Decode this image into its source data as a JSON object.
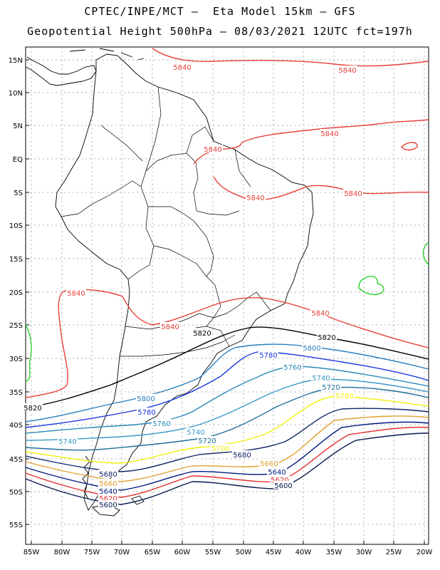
{
  "title_line1": "CPTEC/INPE/MCT –  Eta Model 15km – GFS",
  "title_line2": "Geopotential Height 500hPa – 08/03/2021 12UTC fct=197h",
  "lat_ticks": [
    "15N",
    "10N",
    "5N",
    "EQ",
    "5S",
    "10S",
    "15S",
    "20S",
    "25S",
    "30S",
    "35S",
    "40S",
    "45S",
    "50S",
    "55S"
  ],
  "lon_ticks": [
    "85W",
    "80W",
    "75W",
    "70W",
    "65W",
    "60W",
    "55W",
    "50W",
    "45W",
    "40W",
    "35W",
    "30W",
    "25W",
    "20W"
  ],
  "contour_levels": [
    "5840",
    "5820",
    "5800",
    "5780",
    "5760",
    "5740",
    "5720",
    "5700",
    "5680",
    "5660",
    "5640",
    "5620",
    "5600"
  ],
  "colors": {
    "5840": "#e8403a",
    "5820": "#000000",
    "5800": "#2b7fbf",
    "5780": "#1a37e0",
    "5760": "#2b88b8",
    "5740": "#3a9ac8",
    "5720": "#1f6f9a",
    "5700": "#f2f20a",
    "5680": "#0d2466",
    "5660": "#e0a030",
    "5640": "#001a80",
    "5620": "#e83030",
    "5600": "#0a1a50",
    "green": "#22cc22",
    "grid": "#999999",
    "coast": "#000000"
  }
}
